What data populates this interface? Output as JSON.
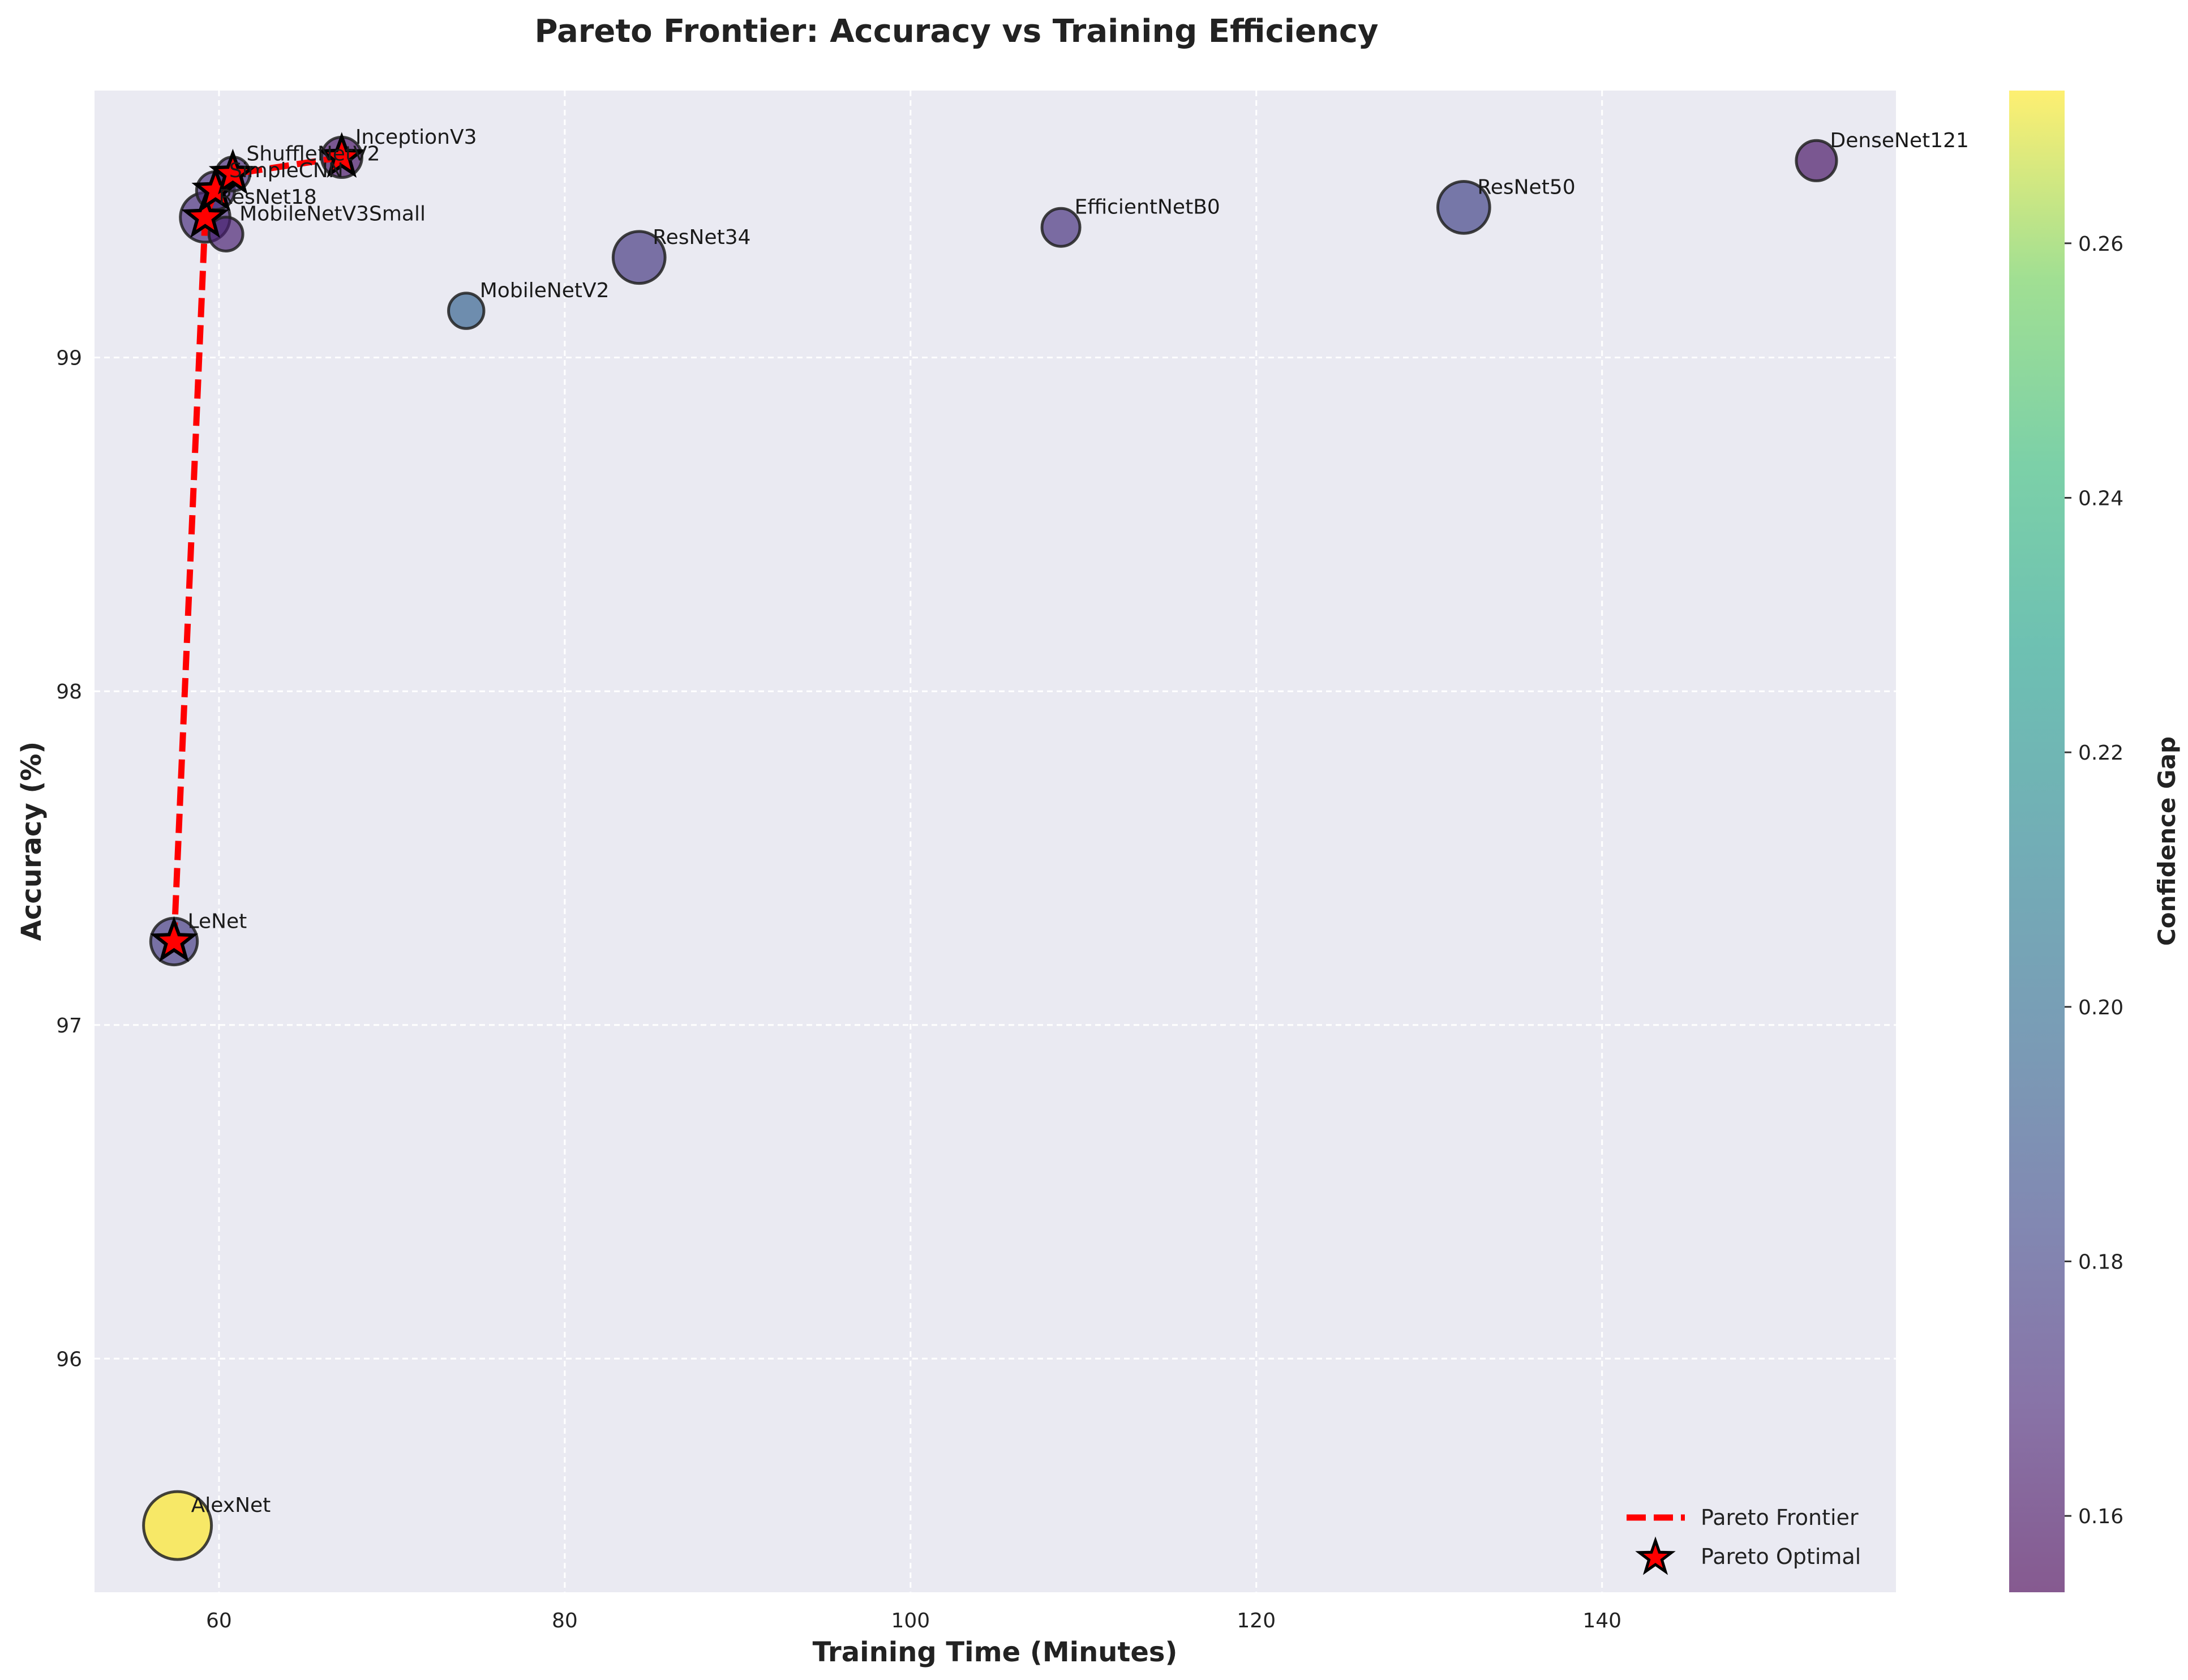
{
  "chart_data": {
    "type": "scatter",
    "title": "Pareto Frontier: Accuracy vs Training Efficiency",
    "xlabel": "Training Time (Minutes)",
    "ylabel": "Accuracy (%)",
    "xlim": [
      52.8,
      157.0
    ],
    "ylim": [
      95.3,
      99.8
    ],
    "xticks": [
      60,
      80,
      100,
      120,
      140
    ],
    "yticks": [
      96,
      97,
      98,
      99
    ],
    "grid": true,
    "colorbar": {
      "label": "Confidence Gap",
      "range": [
        0.154,
        0.272
      ],
      "ticks": [
        0.16,
        0.18,
        0.2,
        0.22,
        0.24,
        0.26
      ],
      "tick_labels": [
        "0.16",
        "0.18",
        "0.20",
        "0.22",
        "0.24",
        "0.26"
      ],
      "colormap": "viridis"
    },
    "points": [
      {
        "name": "AlexNet",
        "x": 57.6,
        "y": 95.5,
        "c": 0.272,
        "size": 1.0,
        "pareto": false
      },
      {
        "name": "LeNet",
        "x": 57.4,
        "y": 97.25,
        "c": 0.176,
        "size": 0.35,
        "pareto": true
      },
      {
        "name": "MobileNetV3Small",
        "x": 60.4,
        "y": 99.37,
        "c": 0.165,
        "size": 0.12,
        "pareto": false
      },
      {
        "name": "ResNet18",
        "x": 59.2,
        "y": 99.42,
        "c": 0.17,
        "size": 0.42,
        "pareto": true
      },
      {
        "name": "SimpleCNN",
        "x": 59.8,
        "y": 99.5,
        "c": 0.17,
        "size": 0.18,
        "pareto": true
      },
      {
        "name": "ShuffleNetV2",
        "x": 60.8,
        "y": 99.55,
        "c": 0.17,
        "size": 0.12,
        "pareto": true
      },
      {
        "name": "InceptionV3",
        "x": 67.1,
        "y": 99.6,
        "c": 0.16,
        "size": 0.22,
        "pareto": true
      },
      {
        "name": "MobileNetV2",
        "x": 74.3,
        "y": 99.14,
        "c": 0.195,
        "size": 0.14,
        "pareto": false
      },
      {
        "name": "ResNet34",
        "x": 84.3,
        "y": 99.3,
        "c": 0.175,
        "size": 0.48,
        "pareto": false
      },
      {
        "name": "EfficientNetB0",
        "x": 108.7,
        "y": 99.39,
        "c": 0.172,
        "size": 0.18,
        "pareto": false
      },
      {
        "name": "ResNet50",
        "x": 132.0,
        "y": 99.45,
        "c": 0.18,
        "size": 0.48,
        "pareto": false
      },
      {
        "name": "DenseNet121",
        "x": 152.4,
        "y": 99.59,
        "c": 0.16,
        "size": 0.22,
        "pareto": false
      }
    ],
    "pareto_frontier": [
      {
        "x": 57.4,
        "y": 97.25
      },
      {
        "x": 59.2,
        "y": 99.42
      },
      {
        "x": 59.8,
        "y": 99.5
      },
      {
        "x": 60.8,
        "y": 99.55
      },
      {
        "x": 67.1,
        "y": 99.6
      }
    ],
    "legend": {
      "placement": "lower-right",
      "entries": [
        "Pareto Frontier",
        "Pareto Optimal"
      ]
    }
  },
  "colors": {
    "plot_bg": "#eaeaf2",
    "frontier": "#ff0000",
    "star_fill": "#ff0000",
    "star_edge": "#000000"
  }
}
